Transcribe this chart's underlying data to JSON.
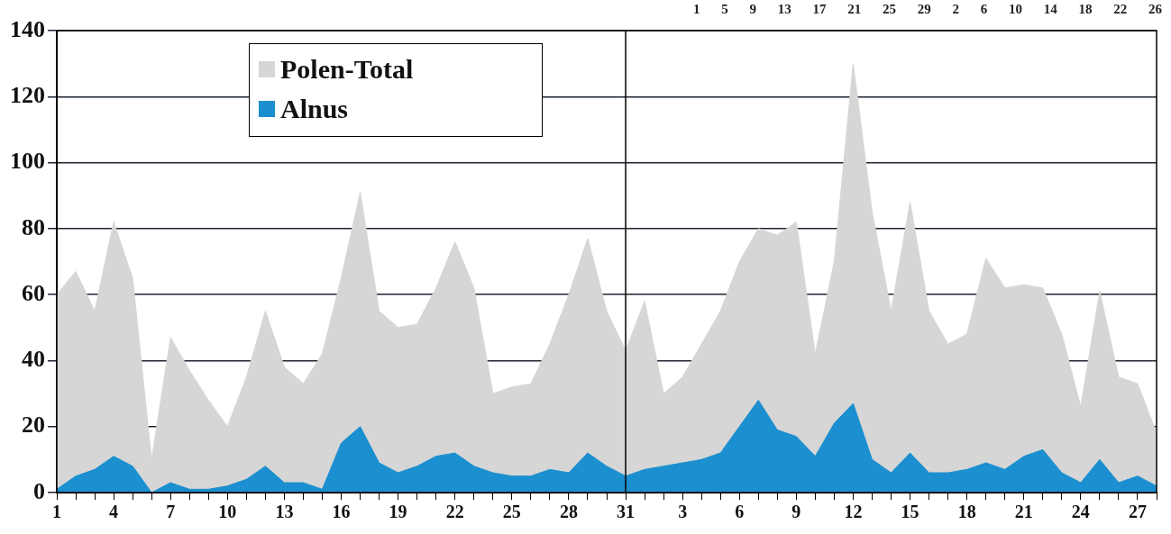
{
  "chart_data": {
    "type": "area",
    "categories": [
      "1",
      null,
      null,
      "4",
      null,
      null,
      "7",
      null,
      null,
      "10",
      null,
      null,
      "13",
      null,
      null,
      "16",
      null,
      null,
      "19",
      null,
      null,
      "22",
      null,
      null,
      "25",
      null,
      null,
      "28",
      null,
      null,
      "31",
      null,
      null,
      "3",
      null,
      null,
      "6",
      null,
      null,
      "9",
      null,
      null,
      "12",
      null,
      null,
      "15",
      null,
      null,
      "18",
      null,
      null,
      "21",
      null,
      null,
      "24",
      null,
      null,
      "27",
      null
    ],
    "series": [
      {
        "name": "Polen-Total",
        "color": "#d6d6d6",
        "values": [
          60,
          67,
          55,
          82,
          65,
          10,
          47,
          37,
          28,
          20,
          35,
          55,
          38,
          33,
          42,
          65,
          91,
          55,
          50,
          51,
          62,
          76,
          62,
          30,
          32,
          33,
          45,
          60,
          77,
          55,
          43,
          58,
          30,
          35,
          45,
          55,
          70,
          80,
          78,
          82,
          42,
          70,
          130,
          85,
          55,
          88,
          55,
          45,
          48,
          71,
          62,
          63,
          62,
          48,
          26,
          61,
          35,
          33,
          18
        ]
      },
      {
        "name": "Alnus",
        "color": "#1b8fcf",
        "values": [
          1,
          5,
          7,
          11,
          8,
          0,
          3,
          1,
          1,
          2,
          4,
          8,
          3,
          3,
          1,
          15,
          20,
          9,
          6,
          8,
          11,
          12,
          8,
          6,
          5,
          5,
          7,
          6,
          12,
          8,
          5,
          7,
          8,
          9,
          10,
          12,
          20,
          28,
          19,
          17,
          11,
          21,
          27,
          10,
          6,
          12,
          6,
          6,
          7,
          9,
          7,
          11,
          13,
          6,
          3,
          10,
          3,
          5,
          2
        ]
      }
    ],
    "ylim": [
      0,
      140
    ],
    "yticks": [
      0,
      20,
      40,
      60,
      80,
      100,
      120,
      140
    ],
    "grid": "y",
    "legend": "top left",
    "marker": "none",
    "ref_lines": [
      {
        "axis": "x",
        "value": "31",
        "color": "#000000"
      }
    ],
    "annotations": [
      "1 5 9 13 17 21 25 29 2 6 10 14 18 22 26"
    ]
  }
}
